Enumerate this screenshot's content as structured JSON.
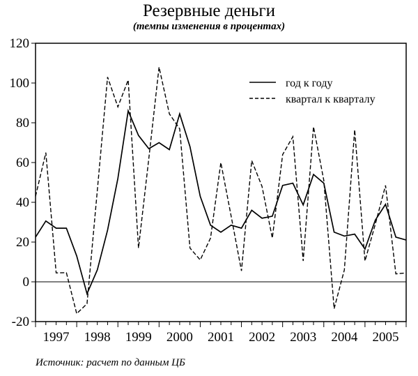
{
  "title": "Резервные деньги",
  "subtitle": "(темпы изменения в процентах)",
  "source_note": "Источник: расчет по данным ЦБ",
  "legend": {
    "items": [
      {
        "label": "год к году",
        "style": "solid"
      },
      {
        "label": "квартал к кварталу",
        "style": "dashed"
      }
    ]
  },
  "chart_data": {
    "type": "line",
    "title": "Резервные деньги",
    "subtitle": "(темпы изменения в процентах)",
    "xlabel": "",
    "ylabel": "",
    "ylim": [
      -20,
      120
    ],
    "yticks": [
      -20,
      0,
      20,
      40,
      60,
      80,
      100,
      120
    ],
    "year_labels": [
      "1997",
      "1998",
      "1999",
      "2000",
      "2001",
      "2002",
      "2003",
      "2004",
      "2005"
    ],
    "frequency": "quarterly",
    "x_start": "1997Q1",
    "legend_position": "upper right inside",
    "grid": false,
    "zero_line": true,
    "series": [
      {
        "name": "год к году",
        "style": "solid",
        "values": [
          22.5,
          30.6,
          27,
          27,
          13,
          -6,
          6,
          26,
          52,
          86,
          73.6,
          67,
          70,
          66.5,
          84.5,
          68,
          43,
          28.5,
          25,
          28.5,
          27,
          36,
          32,
          33,
          48.5,
          49.6,
          38.7,
          54,
          49.6,
          25,
          23,
          24,
          16.5,
          31,
          39,
          22.5,
          21
        ]
      },
      {
        "name": "квартал к кварталу",
        "style": "dashed",
        "values": [
          43,
          65,
          4.5,
          4.6,
          -16,
          -11,
          46,
          103,
          88,
          101.5,
          17,
          62,
          108,
          84.5,
          77,
          17,
          11,
          22,
          60,
          33,
          5.5,
          61,
          48,
          22,
          64,
          73,
          10.5,
          78,
          51,
          -13.5,
          6,
          76.5,
          10.5,
          29,
          48.5,
          4,
          4.5
        ]
      }
    ]
  }
}
